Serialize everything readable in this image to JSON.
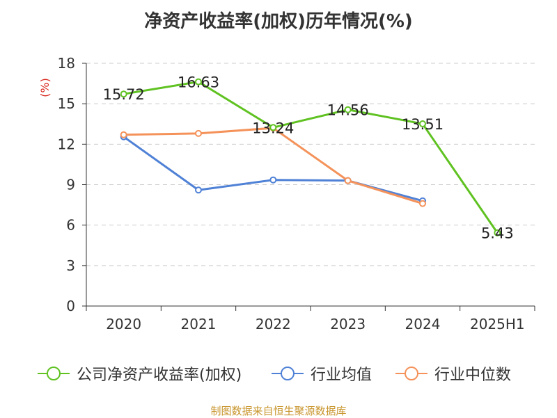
{
  "chart_data": {
    "type": "line",
    "title": "净资产收益率(加权)历年情况(%)",
    "ylabel": "(%)",
    "categories": [
      "2020",
      "2021",
      "2022",
      "2023",
      "2024",
      "2025H1"
    ],
    "yticks": [
      0,
      3,
      6,
      9,
      12,
      15,
      18
    ],
    "ylim": [
      0,
      18
    ],
    "grid": true,
    "legend_position": "bottom",
    "series": [
      {
        "name": "公司净资产收益率(加权)",
        "color": "#5fc221",
        "values": [
          15.72,
          16.63,
          13.24,
          14.56,
          13.51,
          5.43
        ],
        "labels": [
          "15.72",
          "16.63",
          "13.24",
          "14.56",
          "13.51",
          "5.43"
        ]
      },
      {
        "name": "行业均值",
        "color": "#4f81d6",
        "values": [
          12.55,
          8.6,
          9.35,
          9.3,
          7.8,
          null
        ]
      },
      {
        "name": "行业中位数",
        "color": "#f4925a",
        "values": [
          12.7,
          12.8,
          13.2,
          9.3,
          7.6,
          null
        ]
      }
    ]
  },
  "source": "制图数据来自恒生聚源数据库"
}
